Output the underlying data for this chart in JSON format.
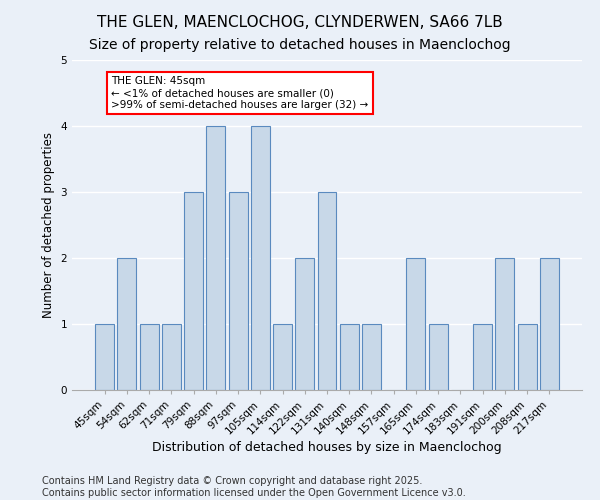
{
  "title": "THE GLEN, MAENCLOCHOG, CLYNDERWEN, SA66 7LB",
  "subtitle": "Size of property relative to detached houses in Maenclochog",
  "xlabel": "Distribution of detached houses by size in Maenclochog",
  "ylabel": "Number of detached properties",
  "categories": [
    "45sqm",
    "54sqm",
    "62sqm",
    "71sqm",
    "79sqm",
    "88sqm",
    "97sqm",
    "105sqm",
    "114sqm",
    "122sqm",
    "131sqm",
    "140sqm",
    "148sqm",
    "157sqm",
    "165sqm",
    "174sqm",
    "183sqm",
    "191sqm",
    "200sqm",
    "208sqm",
    "217sqm"
  ],
  "values": [
    1,
    2,
    1,
    1,
    3,
    4,
    3,
    4,
    1,
    2,
    3,
    1,
    1,
    0,
    2,
    1,
    0,
    1,
    2,
    1,
    2
  ],
  "bar_color": "#c8d8e8",
  "bar_edge_color": "#5a8abf",
  "annotation_text": "THE GLEN: 45sqm\n← <1% of detached houses are smaller (0)\n>99% of semi-detached houses are larger (32) →",
  "annotation_box_color": "white",
  "annotation_box_edge_color": "red",
  "ylim": [
    0,
    5
  ],
  "yticks": [
    0,
    1,
    2,
    3,
    4,
    5
  ],
  "background_color": "#eaf0f8",
  "footer_text": "Contains HM Land Registry data © Crown copyright and database right 2025.\nContains public sector information licensed under the Open Government Licence v3.0.",
  "title_fontsize": 11,
  "subtitle_fontsize": 10,
  "xlabel_fontsize": 9,
  "ylabel_fontsize": 8.5,
  "tick_fontsize": 7.5,
  "footer_fontsize": 7
}
